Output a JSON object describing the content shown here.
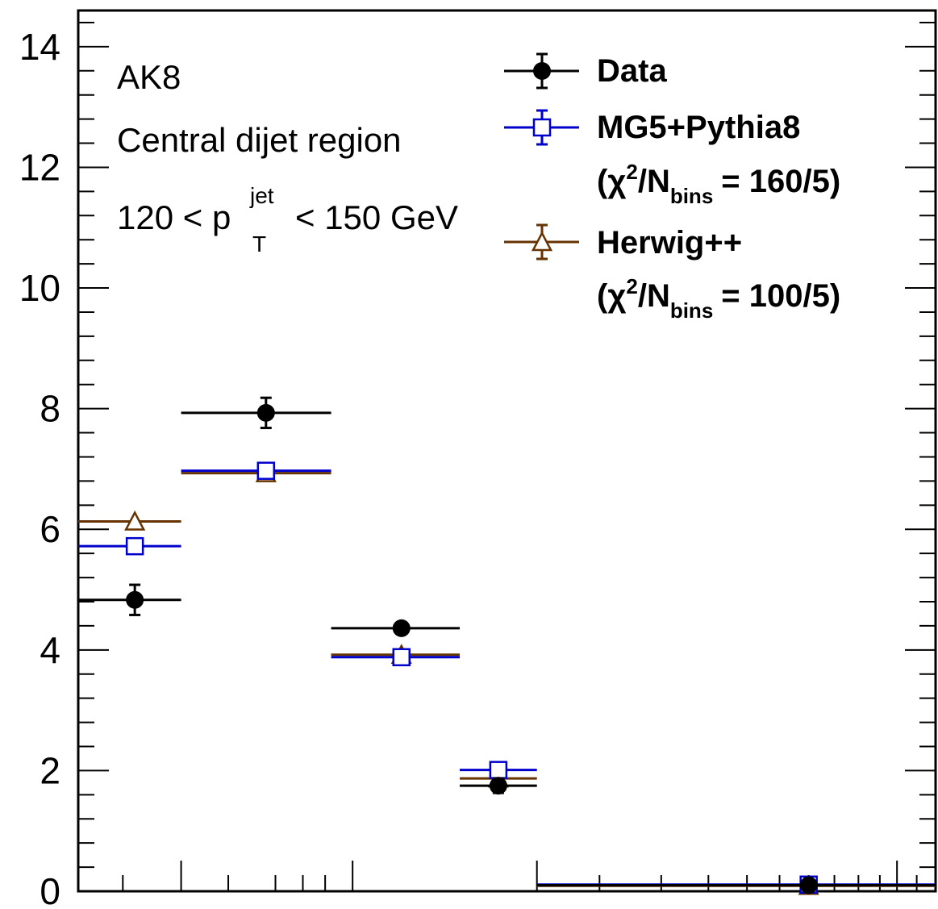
{
  "chart_data": {
    "type": "scatter",
    "ylim": [
      0,
      14.6
    ],
    "xlim": [
      0,
      1
    ],
    "grid": false,
    "legend_position": "top-right",
    "yticks": [
      "0",
      "2",
      "4",
      "6",
      "8",
      "10",
      "12",
      "14"
    ],
    "annotations": {
      "jet": "AK8",
      "region": "Central dijet region",
      "pt_prefix": "120 < p",
      "pt_sup": "jet",
      "pt_sub": "T",
      "pt_suffix": "< 150 GeV"
    },
    "bins": [
      [
        0.0,
        0.12
      ],
      [
        0.12,
        0.295
      ],
      [
        0.295,
        0.445
      ],
      [
        0.445,
        0.535
      ],
      [
        0.535,
        1.0
      ]
    ],
    "series": [
      {
        "name": "Data",
        "color": "#000000",
        "marker": "filled-circle",
        "x": [
          0.066,
          0.219,
          0.377,
          0.49,
          0.852
        ],
        "values": [
          4.83,
          7.93,
          4.36,
          1.75,
          0.1
        ],
        "errors": [
          0.25,
          0.25,
          0.06,
          0.12,
          0.02
        ]
      },
      {
        "name": "MG5+Pythia8",
        "chi2": "(χ²/N_bins = 160/5)",
        "color": "#0000cc",
        "marker": "open-square",
        "x": [
          0.066,
          0.219,
          0.377,
          0.49,
          0.852
        ],
        "values": [
          5.72,
          6.97,
          3.88,
          2.01,
          0.11
        ],
        "errors": [
          0.03,
          0.03,
          0.03,
          0.02,
          0.01
        ]
      },
      {
        "name": "Herwig++",
        "chi2": "(χ²/N_bins = 100/5)",
        "color": "#663300",
        "marker": "open-triangle",
        "x": [
          0.066,
          0.219,
          0.377,
          0.49,
          0.852
        ],
        "values": [
          6.13,
          6.93,
          3.92,
          1.87,
          0.09
        ],
        "errors": [
          0.03,
          0.03,
          0.03,
          0.02,
          0.01
        ]
      }
    ],
    "legend": {
      "data": "Data",
      "mg5": "MG5+Pythia8",
      "mg5_chi_open": "(χ",
      "mg5_chi_sup": "2",
      "mg5_chi_mid": "/N",
      "mg5_chi_sub": "bins",
      "mg5_chi_val": "= 160/5)",
      "herwig": "Herwig++",
      "herwig_chi_open": "(χ",
      "herwig_chi_sup": "2",
      "herwig_chi_mid": "/N",
      "herwig_chi_sub": "bins",
      "herwig_chi_val": "= 100/5)"
    }
  }
}
